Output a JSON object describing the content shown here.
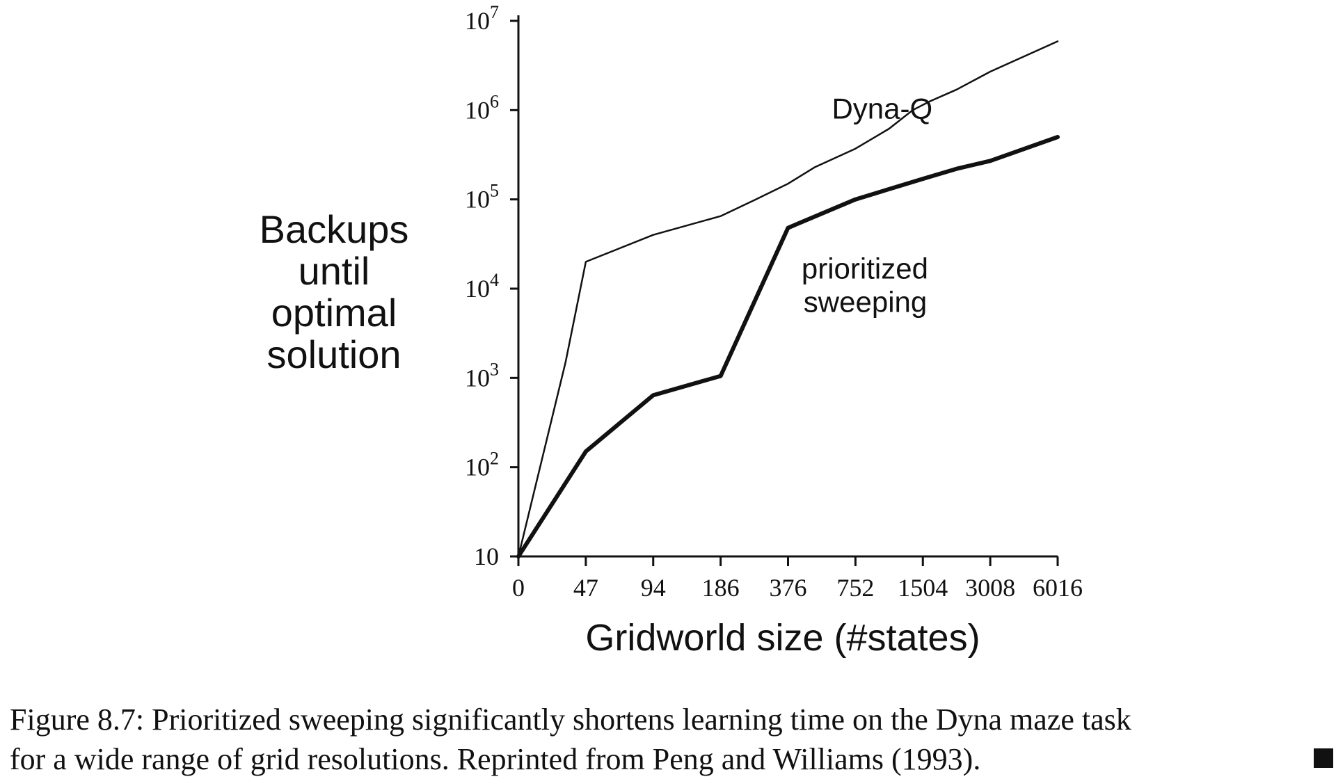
{
  "chart_data": {
    "type": "line",
    "xlabel": "Gridworld size (#states)",
    "ylabel_lines": [
      "Backups",
      "until",
      "optimal",
      "solution"
    ],
    "x_categories": [
      "0",
      "47",
      "94",
      "186",
      "376",
      "752",
      "1504",
      "3008",
      "6016"
    ],
    "y_scale": "log",
    "ylim": [
      10,
      10000000
    ],
    "y_ticks": [
      {
        "value": 10,
        "base": "10",
        "exp": ""
      },
      {
        "value": 100,
        "base": "10",
        "exp": "2"
      },
      {
        "value": 1000,
        "base": "10",
        "exp": "3"
      },
      {
        "value": 10000,
        "base": "10",
        "exp": "4"
      },
      {
        "value": 100000,
        "base": "10",
        "exp": "5"
      },
      {
        "value": 1000000,
        "base": "10",
        "exp": "6"
      },
      {
        "value": 10000000,
        "base": "10",
        "exp": "7"
      }
    ],
    "grid": false,
    "series": [
      {
        "name": "Dyna-Q",
        "label_position": "above",
        "line_weight": "thin",
        "points": [
          {
            "x": 0,
            "y": 10
          },
          {
            "x": 0.7,
            "y": 1500
          },
          {
            "x": 1,
            "y": 20000
          },
          {
            "x": 2,
            "y": 40000
          },
          {
            "x": 3,
            "y": 65000
          },
          {
            "x": 3.5,
            "y": 98000
          },
          {
            "x": 4,
            "y": 150000
          },
          {
            "x": 4.4,
            "y": 230000
          },
          {
            "x": 5,
            "y": 370000
          },
          {
            "x": 5.5,
            "y": 620000
          },
          {
            "x": 5.85,
            "y": 1000000
          },
          {
            "x": 6.1,
            "y": 1250000
          },
          {
            "x": 6.5,
            "y": 1700000
          },
          {
            "x": 7,
            "y": 2700000
          },
          {
            "x": 8,
            "y": 5900000
          }
        ]
      },
      {
        "name": "prioritized sweeping",
        "label_lines": [
          "prioritized",
          "sweeping"
        ],
        "label_position": "below",
        "line_weight": "thick",
        "points": [
          {
            "x": 0,
            "y": 10
          },
          {
            "x": 1,
            "y": 150
          },
          {
            "x": 2,
            "y": 640
          },
          {
            "x": 3,
            "y": 1050
          },
          {
            "x": 4,
            "y": 48000
          },
          {
            "x": 5,
            "y": 100000
          },
          {
            "x": 6,
            "y": 170000
          },
          {
            "x": 6.5,
            "y": 220000
          },
          {
            "x": 7,
            "y": 270000
          },
          {
            "x": 8,
            "y": 500000
          }
        ]
      }
    ]
  },
  "caption": {
    "line1": "Figure 8.7:  Prioritized sweeping significantly shortens learning time on the Dyna maze task",
    "line2": "for a wide range of grid resolutions. Reprinted from Peng and Williams (1993)."
  }
}
